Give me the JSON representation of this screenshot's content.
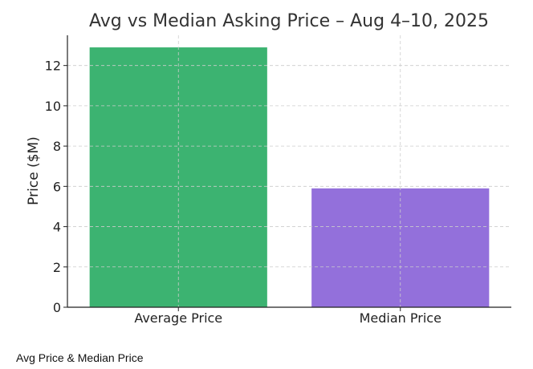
{
  "chart_data": {
    "type": "bar",
    "title": "Avg vs Median Asking Price – Aug 4–10, 2025",
    "xlabel": "",
    "ylabel": "Price ($M)",
    "categories": [
      "Average Price",
      "Median Price"
    ],
    "values": [
      12.9,
      5.9
    ],
    "colors": [
      "#3cb371",
      "#9370db"
    ],
    "ylim": [
      0,
      13.5
    ],
    "yticks": [
      "0",
      "2",
      "4",
      "6",
      "8",
      "10",
      "12"
    ],
    "grid": true,
    "legend": "none"
  },
  "caption": "Avg Price & Median Price"
}
